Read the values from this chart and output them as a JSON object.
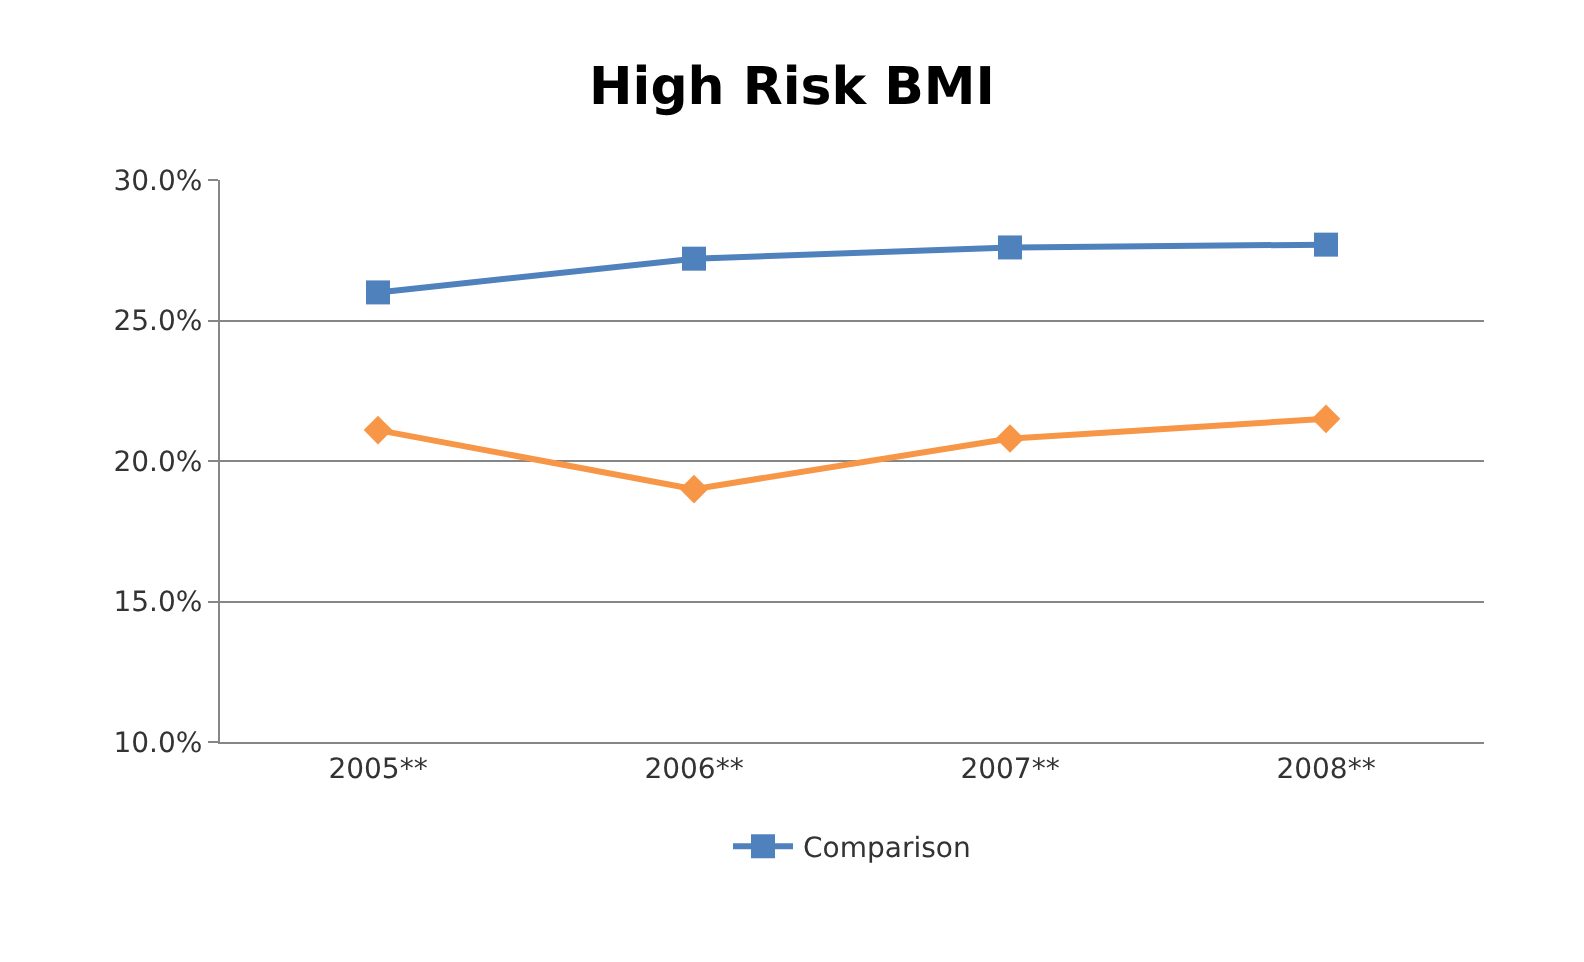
{
  "chart_data": {
    "type": "line",
    "title": "High Risk BMI",
    "categories": [
      "2005**",
      "2006**",
      "2007**",
      "2008**"
    ],
    "series": [
      {
        "color": "#f79646",
        "marker": "diamond",
        "values": [
          21.1,
          19.0,
          20.8,
          21.5
        ]
      },
      {
        "name": "Comparison",
        "color": "#4f81bd",
        "marker": "square",
        "values": [
          26.0,
          27.2,
          27.6,
          27.7
        ]
      }
    ],
    "ylim": [
      10,
      30
    ],
    "yticks": [
      {
        "value": 10,
        "label": "10.0%"
      },
      {
        "value": 15,
        "label": "15.0%"
      },
      {
        "value": 20,
        "label": "20.0%"
      },
      {
        "value": 25,
        "label": "25.0%"
      },
      {
        "value": 30,
        "label": "30.0%"
      }
    ],
    "grid": "y",
    "legend": "bottom",
    "line_style": "solid"
  }
}
